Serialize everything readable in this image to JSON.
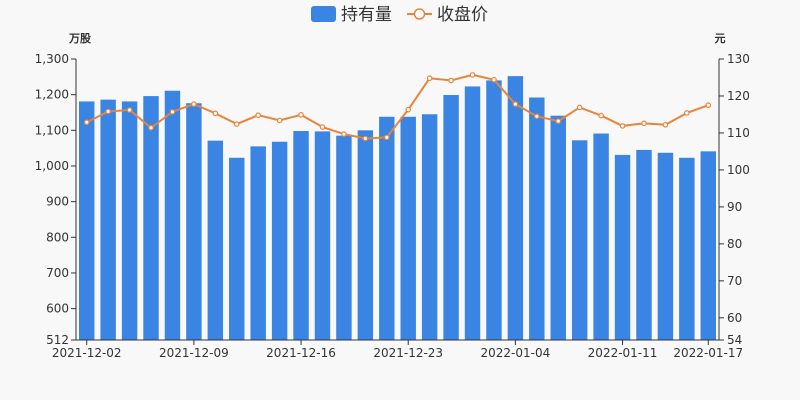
{
  "chart_data": {
    "type": "bar+line",
    "legend": {
      "position": "top-center"
    },
    "series": [
      {
        "name": "持有量",
        "type": "bar",
        "axis": "left",
        "color": "#3a84e4",
        "values": [
          1181,
          1186,
          1181,
          1196,
          1211,
          1176,
          1071,
          1023,
          1055,
          1068,
          1098,
          1097,
          1085,
          1100,
          1138,
          1138,
          1145,
          1199,
          1223,
          1240,
          1252,
          1192,
          1141,
          1072,
          1091,
          1031,
          1045,
          1037,
          1023,
          1041
        ]
      },
      {
        "name": "收盘价",
        "type": "line",
        "axis": "right",
        "color": "#e8843a",
        "values": [
          112.9,
          115.8,
          116.2,
          111.4,
          115.7,
          117.8,
          115.3,
          112.4,
          114.8,
          113.4,
          114.9,
          111.6,
          109.7,
          108.5,
          108.8,
          116.3,
          124.8,
          124.2,
          125.7,
          124.4,
          117.8,
          114.5,
          113.2,
          116.9,
          114.7,
          111.9,
          112.6,
          112.2,
          115.4,
          117.5
        ]
      }
    ],
    "x_tick_labels": [
      {
        "index": 0,
        "label": "2021-12-02"
      },
      {
        "index": 5,
        "label": "2021-12-09"
      },
      {
        "index": 10,
        "label": "2021-12-16"
      },
      {
        "index": 15,
        "label": "2021-12-23"
      },
      {
        "index": 20,
        "label": "2022-01-04"
      },
      {
        "index": 25,
        "label": "2022-01-11"
      },
      {
        "index": 29,
        "label": "2022-01-17"
      }
    ],
    "y_left": {
      "unit": "万股",
      "min": 512,
      "max": 1300,
      "ticks": [
        {
          "value": 512,
          "label": "512"
        },
        {
          "value": 600,
          "label": "600"
        },
        {
          "value": 700,
          "label": "700"
        },
        {
          "value": 800,
          "label": "800"
        },
        {
          "value": 900,
          "label": "900"
        },
        {
          "value": 1000,
          "label": "1,000"
        },
        {
          "value": 1100,
          "label": "1,100"
        },
        {
          "value": 1200,
          "label": "1,200"
        },
        {
          "value": 1300,
          "label": "1,300"
        }
      ]
    },
    "y_right": {
      "unit": "元",
      "min": 54,
      "max": 130,
      "ticks": [
        {
          "value": 54,
          "label": "54"
        },
        {
          "value": 60,
          "label": "60"
        },
        {
          "value": 70,
          "label": "70"
        },
        {
          "value": 80,
          "label": "80"
        },
        {
          "value": 90,
          "label": "90"
        },
        {
          "value": 100,
          "label": "100"
        },
        {
          "value": 110,
          "label": "110"
        },
        {
          "value": 120,
          "label": "120"
        },
        {
          "value": 130,
          "label": "130"
        }
      ]
    },
    "grid": false
  }
}
